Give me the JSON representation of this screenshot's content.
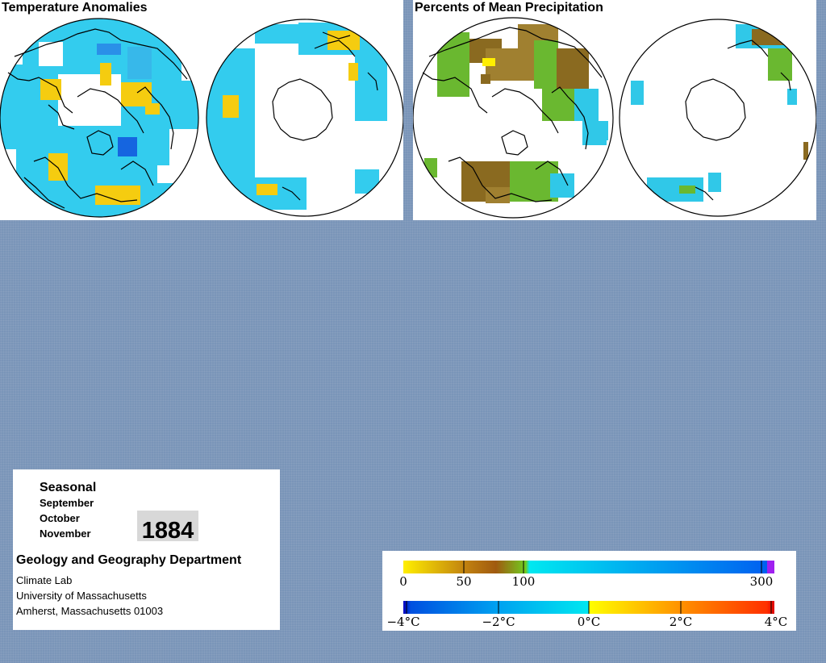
{
  "temperature": {
    "title": "Temperature Anomalies"
  },
  "precipitation": {
    "title": "Percents of Mean Precipitation"
  },
  "info": {
    "season": "Seasonal",
    "months": [
      "September",
      "October",
      "November"
    ],
    "year": "1884",
    "department": "Geology and Geography Department",
    "lab": "Climate Lab",
    "university": "University of Massachusetts",
    "address": "Amherst, Massachusetts 01003"
  },
  "legend": {
    "precip_ticks": [
      "0",
      "50",
      "100",
      "300"
    ],
    "temp_ticks": [
      "−4°C",
      "−2°C",
      "0°C",
      "2°C",
      "4°C"
    ],
    "precip_colors": [
      "#ffee00",
      "#a05a10",
      "#70cc20",
      "#00e8f0",
      "#0060f0",
      "#a020f0"
    ],
    "temp_colors": [
      "#0000c0",
      "#00a0f0",
      "#00e8f0",
      "#ffff00",
      "#ff8000",
      "#e00000"
    ]
  },
  "colors": {
    "background": "#7a95b8",
    "cold_anomaly": "#33ccee",
    "strong_cold": "#1565e0",
    "warm_anomaly": "#f5cc10",
    "dry": "#8a6a20",
    "normal": "#6ab830",
    "wet": "#30c8e8"
  }
}
